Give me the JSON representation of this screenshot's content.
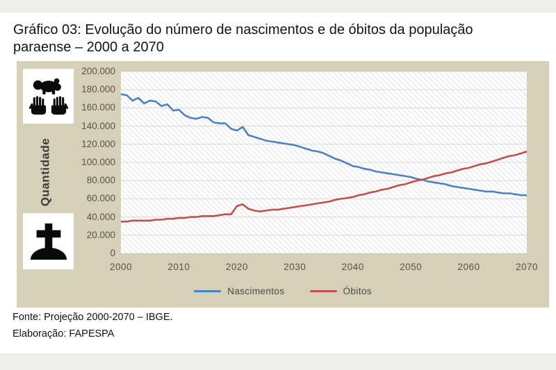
{
  "page": {
    "title_line1": "Gráfico 03: Evolução do número de nascimentos e de óbitos da população",
    "title_line2": "paraense – 2000 a 2070"
  },
  "footer": {
    "fonte": "Fonte: Projeção 2000-2070 – IBGE.",
    "elaboracao": "Elaboração: FAPESPA"
  },
  "colors": {
    "panel_bg": "#D6D0B8",
    "bar_bg": "#EDEDEB",
    "nascimentos": "#4F81BD",
    "obitos": "#C0504D",
    "grid": "#D8D8D8",
    "axis_text": "#57544A"
  },
  "icons": {
    "birth": "baby-in-hands-icon",
    "death": "grave-cross-icon"
  },
  "chart_data": {
    "type": "line",
    "title": "Gráfico 03: Evolução do número de nascimentos e de óbitos da população paraense – 2000 a 2070",
    "xlabel": "",
    "ylabel": "Quantidade",
    "ylim": [
      0,
      200000
    ],
    "ytick_step": 20000,
    "ytick_labels_top_to_bottom": [
      "200.000",
      "180.000",
      "160.000",
      "140.000",
      "120.000",
      "100.000",
      "80.000",
      "60.000",
      "40.000",
      "20.000",
      "0"
    ],
    "xticks": [
      2000,
      2010,
      2020,
      2030,
      2040,
      2050,
      2060,
      2070
    ],
    "grid": "horizontal",
    "legend_position": "bottom",
    "x": [
      2000,
      2001,
      2002,
      2003,
      2004,
      2005,
      2006,
      2007,
      2008,
      2009,
      2010,
      2011,
      2012,
      2013,
      2014,
      2015,
      2016,
      2017,
      2018,
      2019,
      2020,
      2021,
      2022,
      2023,
      2024,
      2025,
      2026,
      2027,
      2028,
      2029,
      2030,
      2031,
      2032,
      2033,
      2034,
      2035,
      2036,
      2037,
      2038,
      2039,
      2040,
      2041,
      2042,
      2043,
      2044,
      2045,
      2046,
      2047,
      2048,
      2049,
      2050,
      2051,
      2052,
      2053,
      2054,
      2055,
      2056,
      2057,
      2058,
      2059,
      2060,
      2061,
      2062,
      2063,
      2064,
      2065,
      2066,
      2067,
      2068,
      2069,
      2070
    ],
    "series": [
      {
        "name": "Nascimentos",
        "color": "#4F81BD",
        "values": [
          175000,
          174000,
          168000,
          171000,
          165000,
          168000,
          167000,
          162000,
          164000,
          157000,
          158000,
          152000,
          149000,
          148000,
          150000,
          149000,
          144000,
          143000,
          143000,
          137000,
          135000,
          139000,
          130000,
          128000,
          126000,
          124000,
          123000,
          122000,
          121000,
          120000,
          119000,
          117000,
          115000,
          113000,
          112000,
          110000,
          107000,
          104000,
          102000,
          99000,
          96000,
          95000,
          93000,
          92000,
          90000,
          89000,
          88000,
          87000,
          86000,
          85000,
          84000,
          82000,
          81000,
          79000,
          78000,
          77000,
          76000,
          74000,
          73000,
          72000,
          71000,
          70000,
          69000,
          68000,
          68000,
          67000,
          66000,
          66000,
          65000,
          64000,
          64000
        ]
      },
      {
        "name": "Óbitos",
        "color": "#C0504D",
        "values": [
          35000,
          35000,
          36000,
          36000,
          36000,
          36000,
          37000,
          37000,
          38000,
          38000,
          39000,
          39000,
          40000,
          40000,
          41000,
          41000,
          41000,
          42000,
          43000,
          43000,
          52000,
          54000,
          49000,
          47000,
          46000,
          47000,
          48000,
          48000,
          49000,
          50000,
          51000,
          52000,
          53000,
          54000,
          55000,
          56000,
          57000,
          59000,
          60000,
          61000,
          62000,
          64000,
          65000,
          67000,
          68000,
          70000,
          71000,
          73000,
          75000,
          76000,
          78000,
          80000,
          81000,
          83000,
          85000,
          86000,
          88000,
          89000,
          91000,
          93000,
          94000,
          96000,
          98000,
          99000,
          101000,
          103000,
          105000,
          107000,
          108000,
          110000,
          112000
        ]
      }
    ]
  }
}
